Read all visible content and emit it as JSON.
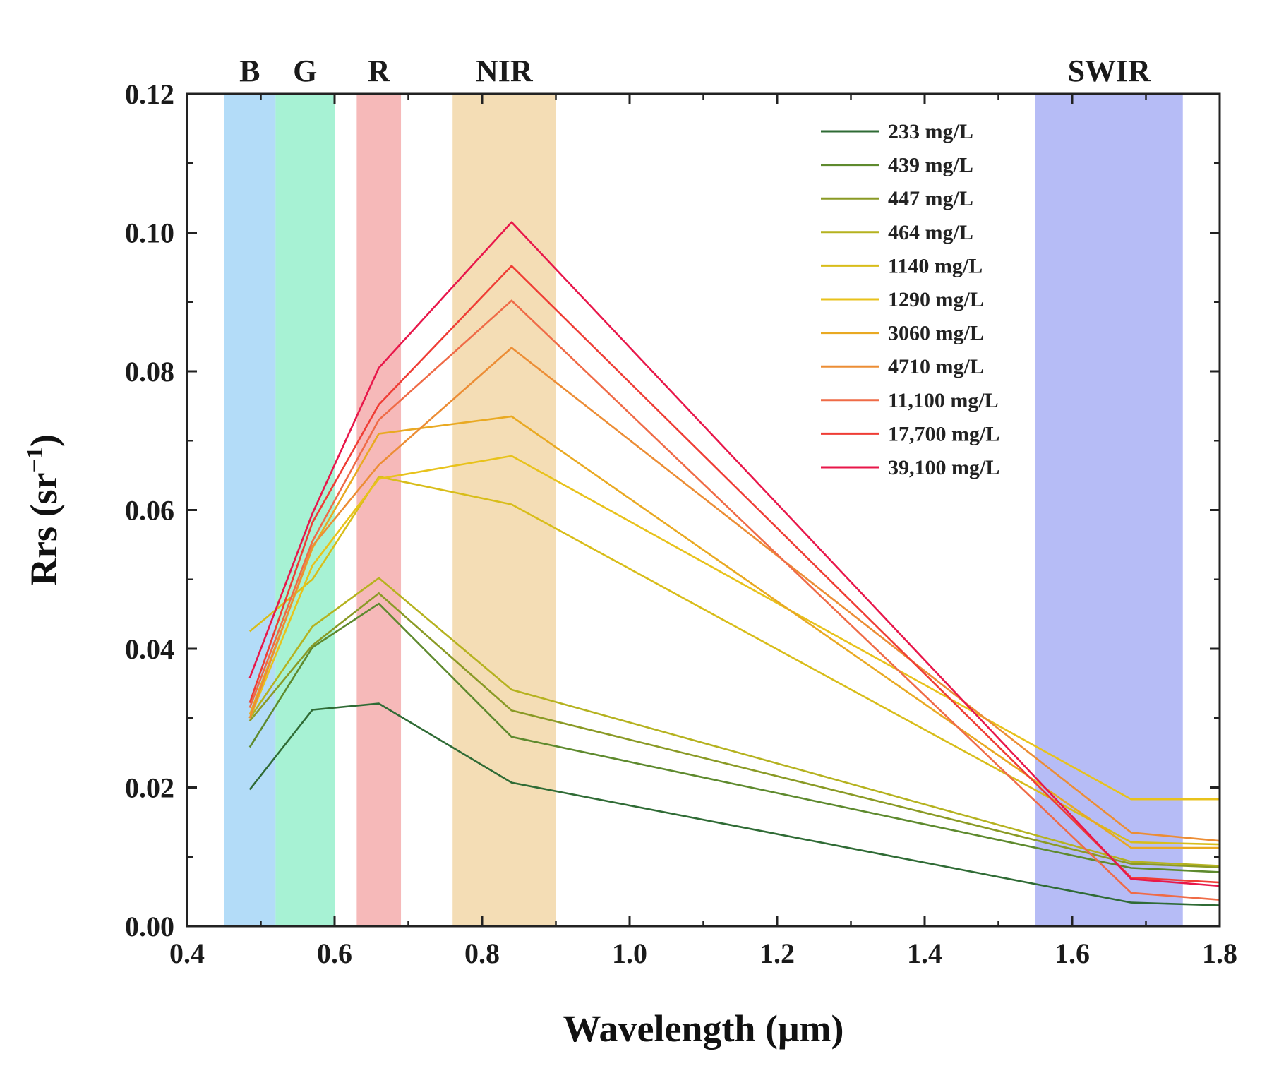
{
  "chart_data": {
    "type": "line",
    "xlabel": "Wavelength (μm)",
    "ylabel_main": "Rrs (sr",
    "ylabel_sup": "−1",
    "ylabel_close": ")",
    "xlim": [
      0.4,
      1.8
    ],
    "ylim": [
      0.0,
      0.12
    ],
    "xticks": [
      0.4,
      0.6,
      0.8,
      1.0,
      1.2,
      1.4,
      1.6,
      1.8
    ],
    "xtick_labels": [
      "0.4",
      "0.6",
      "0.8",
      "1.0",
      "1.2",
      "1.4",
      "1.6",
      "1.8"
    ],
    "yticks": [
      0.0,
      0.02,
      0.04,
      0.06,
      0.08,
      0.1,
      0.12
    ],
    "ytick_labels": [
      "0.00",
      "0.02",
      "0.04",
      "0.06",
      "0.08",
      "0.10",
      "0.12"
    ],
    "bands": [
      {
        "label": "B",
        "x0": 0.45,
        "x1": 0.52,
        "color": "#b3dcf8"
      },
      {
        "label": "G",
        "x0": 0.52,
        "x1": 0.6,
        "color": "#a7f2d4"
      },
      {
        "label": "R",
        "x0": 0.63,
        "x1": 0.69,
        "color": "#f6b9b9"
      },
      {
        "label": "NIR",
        "x0": 0.76,
        "x1": 0.9,
        "color": "#f4ddb5"
      },
      {
        "label": "SWIR",
        "x0": 1.55,
        "x1": 1.75,
        "color": "#b6bcf6"
      }
    ],
    "x": [
      0.485,
      0.57,
      0.66,
      0.84,
      1.68,
      1.8
    ],
    "series": [
      {
        "name": "233 mg/L",
        "color": "#2f6b35",
        "values": [
          0.0197,
          0.0312,
          0.0321,
          0.0207,
          0.0034,
          0.003
        ]
      },
      {
        "name": "439 mg/L",
        "color": "#5e8a2e",
        "values": [
          0.0258,
          0.0402,
          0.0465,
          0.0273,
          0.0084,
          0.0078
        ]
      },
      {
        "name": "447 mg/L",
        "color": "#8a9a25",
        "values": [
          0.0296,
          0.0405,
          0.048,
          0.0311,
          0.009,
          0.0085
        ]
      },
      {
        "name": "464 mg/L",
        "color": "#b5b21f",
        "values": [
          0.03,
          0.0432,
          0.0502,
          0.0341,
          0.0093,
          0.0087
        ]
      },
      {
        "name": "1140 mg/L",
        "color": "#d8bd1a",
        "values": [
          0.0425,
          0.05,
          0.0648,
          0.0608,
          0.0121,
          0.0118
        ]
      },
      {
        "name": "1290 mg/L",
        "color": "#e8c21b",
        "values": [
          0.03,
          0.052,
          0.0645,
          0.0678,
          0.0183,
          0.0183
        ]
      },
      {
        "name": "3060 mg/L",
        "color": "#e9a922",
        "values": [
          0.0305,
          0.0545,
          0.071,
          0.0735,
          0.0113,
          0.0113
        ]
      },
      {
        "name": "4710 mg/L",
        "color": "#ec8d35",
        "values": [
          0.03,
          0.0548,
          0.0665,
          0.0834,
          0.0135,
          0.0123
        ]
      },
      {
        "name": "11,100 mg/L",
        "color": "#ef6b47",
        "values": [
          0.0315,
          0.0555,
          0.073,
          0.0902,
          0.0048,
          0.0038
        ]
      },
      {
        "name": "17,700 mg/L",
        "color": "#ef3d35",
        "values": [
          0.0322,
          0.0582,
          0.0752,
          0.0952,
          0.007,
          0.0063
        ]
      },
      {
        "name": "39,100 mg/L",
        "color": "#e8174a",
        "values": [
          0.0358,
          0.0595,
          0.0805,
          0.1015,
          0.0068,
          0.0058
        ]
      }
    ],
    "legend_position": "top-right",
    "grid": false
  }
}
